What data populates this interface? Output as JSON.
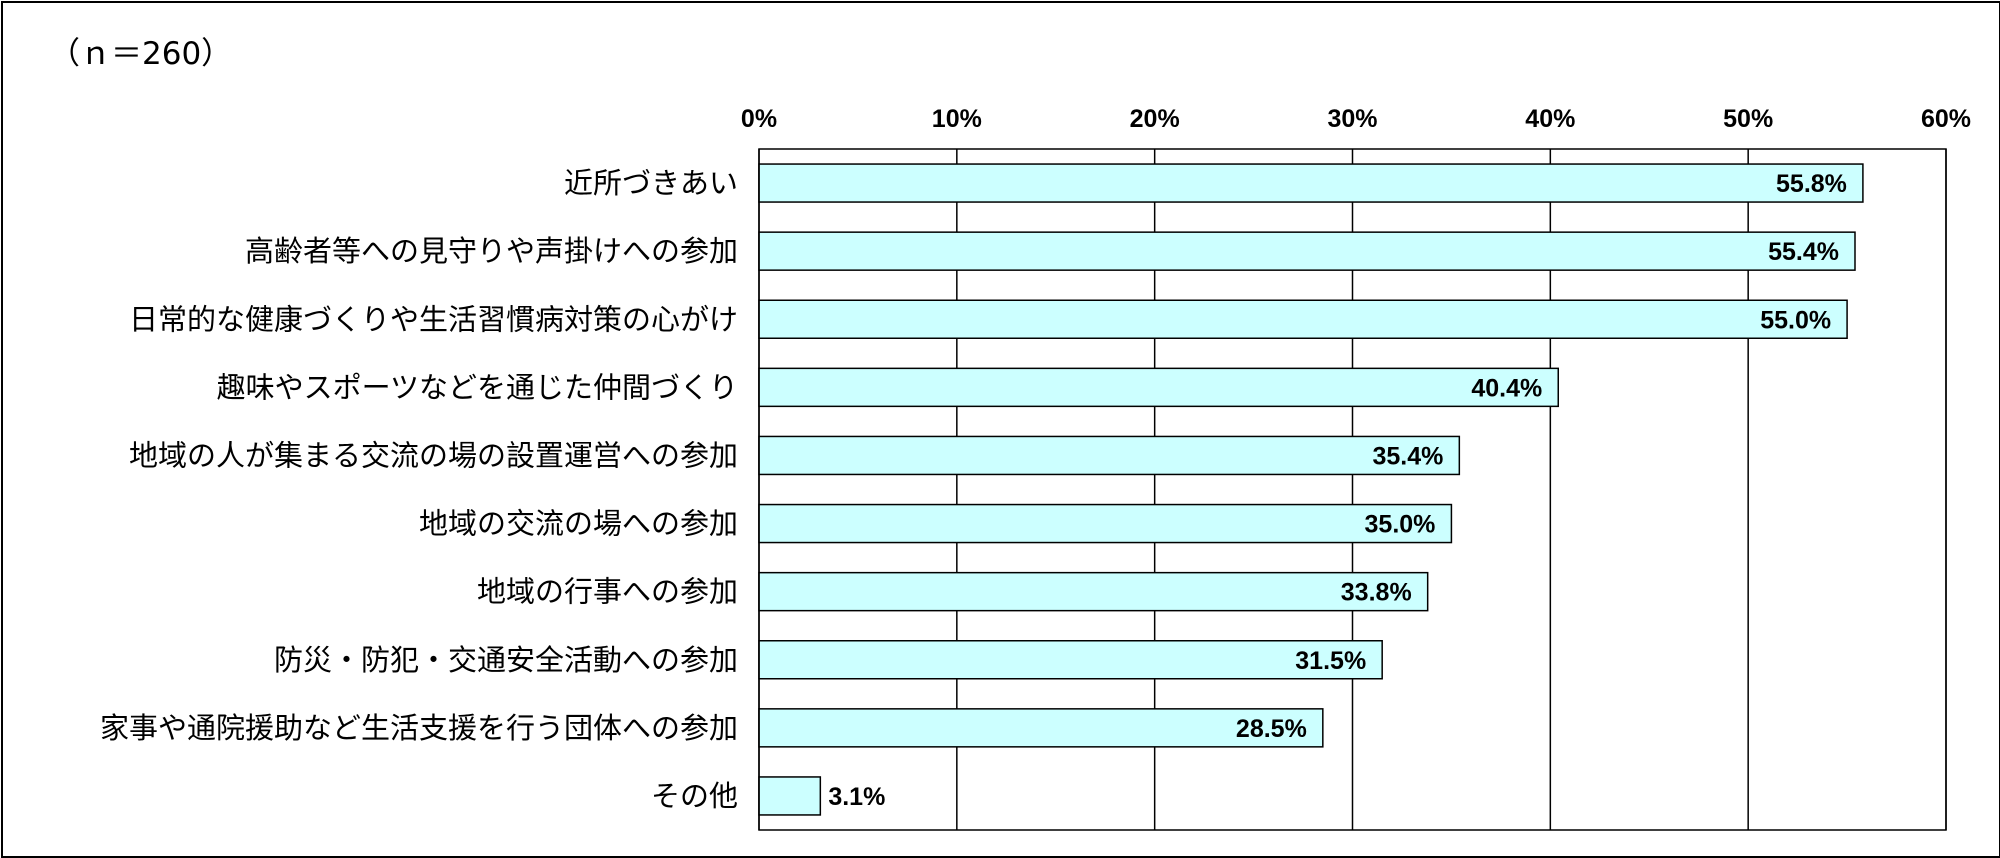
{
  "chart_data": {
    "type": "bar",
    "orientation": "horizontal",
    "note": "（ｎ＝260）",
    "categories": [
      "近所づきあい",
      "高齢者等への見守りや声掛けへの参加",
      "日常的な健康づくりや生活習慣病対策の心がけ",
      "趣味やスポーツなどを通じた仲間づくり",
      "地域の人が集まる交流の場の設置運営への参加",
      "地域の交流の場への参加",
      "地域の行事への参加",
      "防災・防犯・交通安全活動への参加",
      "家事や通院援助など生活支援を行う団体への参加",
      "その他"
    ],
    "values": [
      55.8,
      55.4,
      55.0,
      40.4,
      35.4,
      35.0,
      33.8,
      31.5,
      28.5,
      3.1
    ],
    "value_labels": [
      "55.8%",
      "55.4%",
      "55.0%",
      "40.4%",
      "35.4%",
      "35.0%",
      "33.8%",
      "31.5%",
      "28.5%",
      "3.1%"
    ],
    "xlim": [
      0,
      60
    ],
    "x_ticks": [
      0,
      10,
      20,
      30,
      40,
      50,
      60
    ],
    "x_tick_labels": [
      "0%",
      "10%",
      "20%",
      "30%",
      "40%",
      "50%",
      "60%"
    ],
    "x_axis_position": "top",
    "grid": true,
    "legend": "none",
    "colors": {
      "bar_fill": "#ccffff",
      "bar_stroke": "#000000",
      "grid": "#000000"
    }
  }
}
